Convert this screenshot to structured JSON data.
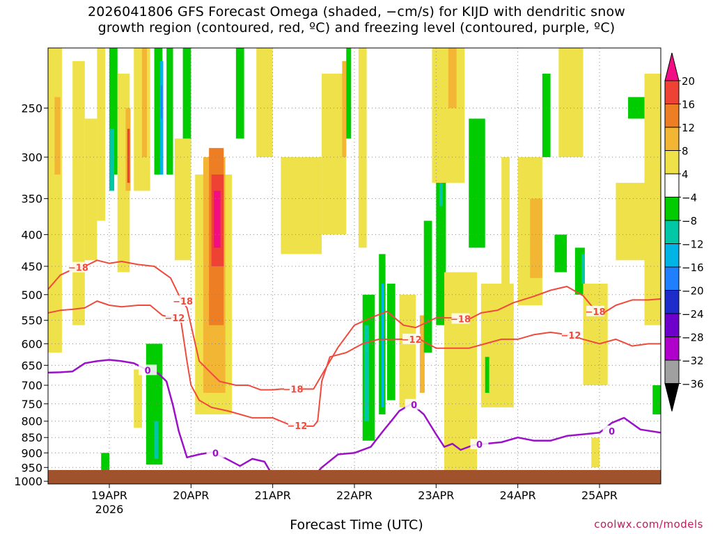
{
  "title": {
    "line1": "2026041806 GFS Forecast Omega (shaded, −cm/s) for KIJD with dendritic snow",
    "line2": "growth region (contoured, red, ºC) and freezing level (contoured, purple, ºC)"
  },
  "credit": "coolwx.com/models",
  "chart_data": {
    "type": "heatmap",
    "title": "2026041806 GFS Forecast Omega (shaded, −cm/s) for KIJD with dendritic snow growth region (contoured, red, ºC) and freezing level (contoured, purple, ºC)",
    "xlabel": "Forecast Time (UTC)",
    "ylabel": "",
    "x_ticks": [
      {
        "label": "19APR",
        "sublabel": "2026",
        "day": 1.0
      },
      {
        "label": "20APR",
        "day": 2.0
      },
      {
        "label": "21APR",
        "day": 3.0
      },
      {
        "label": "22APR",
        "day": 4.0
      },
      {
        "label": "23APR",
        "day": 5.0
      },
      {
        "label": "24APR",
        "day": 6.0
      },
      {
        "label": "25APR",
        "day": 7.0
      }
    ],
    "xlim_days": [
      0.25,
      7.75
    ],
    "y_ticks": [
      "250",
      "300",
      "350",
      "400",
      "450",
      "500",
      "550",
      "600",
      "650",
      "700",
      "750",
      "800",
      "850",
      "900",
      "950",
      "1000"
    ],
    "ylim_hpa": [
      200,
      1010
    ],
    "colorbar": {
      "labels": [
        "20",
        "16",
        "12",
        "8",
        "4",
        "−4",
        "−8",
        "−12",
        "−16",
        "−20",
        "−24",
        "−28",
        "−32",
        "−36"
      ],
      "colors": [
        "#f20d84",
        "#ee4235",
        "#ee7e24",
        "#f3b534",
        "#efe14a",
        "#ffffff",
        "#00cc00",
        "#00c8a6",
        "#00b4e6",
        "#1e80ff",
        "#1e2ccc",
        "#6e00cc",
        "#b000cc",
        "#a0a0a0",
        "#000000"
      ]
    },
    "omega_cells": [
      {
        "x0": 0.25,
        "x1": 0.42,
        "p0": 200,
        "p1": 620,
        "level": 1
      },
      {
        "x0": 0.33,
        "x1": 0.4,
        "p0": 240,
        "p1": 320,
        "level": 2
      },
      {
        "x0": 0.55,
        "x1": 0.7,
        "p0": 210,
        "p1": 560,
        "level": 1
      },
      {
        "x0": 0.7,
        "x1": 0.85,
        "p0": 260,
        "p1": 440,
        "level": 1
      },
      {
        "x0": 0.85,
        "x1": 0.95,
        "p0": 200,
        "p1": 380,
        "level": 1
      },
      {
        "x0": 1.0,
        "x1": 1.1,
        "p0": 200,
        "p1": 320,
        "level": -1
      },
      {
        "x0": 1.0,
        "x1": 1.06,
        "p0": 270,
        "p1": 340,
        "level": -2
      },
      {
        "x0": 1.1,
        "x1": 1.25,
        "p0": 220,
        "p1": 460,
        "level": 1
      },
      {
        "x0": 1.2,
        "x1": 1.26,
        "p0": 250,
        "p1": 340,
        "level": 2
      },
      {
        "x0": 1.22,
        "x1": 1.25,
        "p0": 270,
        "p1": 330,
        "level": 4
      },
      {
        "x0": 1.3,
        "x1": 1.5,
        "p0": 200,
        "p1": 340,
        "level": 1
      },
      {
        "x0": 1.4,
        "x1": 1.46,
        "p0": 200,
        "p1": 300,
        "level": 2
      },
      {
        "x0": 1.55,
        "x1": 1.65,
        "p0": 200,
        "p1": 320,
        "level": -1
      },
      {
        "x0": 1.62,
        "x1": 1.66,
        "p0": 210,
        "p1": 320,
        "level": -3
      },
      {
        "x0": 1.63,
        "x1": 1.65,
        "p0": 230,
        "p1": 260,
        "level": -4
      },
      {
        "x0": 1.7,
        "x1": 1.78,
        "p0": 200,
        "p1": 320,
        "level": -1
      },
      {
        "x0": 1.9,
        "x1": 2.0,
        "p0": 200,
        "p1": 300,
        "level": -1
      },
      {
        "x0": 1.8,
        "x1": 2.0,
        "p0": 280,
        "p1": 440,
        "level": 1
      },
      {
        "x0": 2.05,
        "x1": 2.5,
        "p0": 320,
        "p1": 780,
        "level": 1
      },
      {
        "x0": 2.15,
        "x1": 2.42,
        "p0": 300,
        "p1": 720,
        "level": 2
      },
      {
        "x0": 2.22,
        "x1": 2.4,
        "p0": 290,
        "p1": 560,
        "level": 3
      },
      {
        "x0": 2.25,
        "x1": 2.4,
        "p0": 320,
        "p1": 450,
        "level": 4
      },
      {
        "x0": 2.28,
        "x1": 2.36,
        "p0": 340,
        "p1": 420,
        "level": 5
      },
      {
        "x0": 2.55,
        "x1": 2.65,
        "p0": 200,
        "p1": 280,
        "level": -1
      },
      {
        "x0": 2.8,
        "x1": 3.0,
        "p0": 200,
        "p1": 300,
        "level": 1
      },
      {
        "x0": 3.1,
        "x1": 3.6,
        "p0": 300,
        "p1": 430,
        "level": 1
      },
      {
        "x0": 3.6,
        "x1": 3.9,
        "p0": 220,
        "p1": 400,
        "level": 1
      },
      {
        "x0": 3.85,
        "x1": 3.9,
        "p0": 210,
        "p1": 300,
        "level": 2
      },
      {
        "x0": 3.9,
        "x1": 3.96,
        "p0": 200,
        "p1": 280,
        "level": -1
      },
      {
        "x0": 4.05,
        "x1": 4.15,
        "p0": 200,
        "p1": 420,
        "level": 1
      },
      {
        "x0": 4.1,
        "x1": 4.25,
        "p0": 500,
        "p1": 860,
        "level": -1
      },
      {
        "x0": 4.12,
        "x1": 4.18,
        "p0": 560,
        "p1": 800,
        "level": -2
      },
      {
        "x0": 4.3,
        "x1": 4.38,
        "p0": 430,
        "p1": 780,
        "level": -1
      },
      {
        "x0": 4.33,
        "x1": 4.36,
        "p0": 480,
        "p1": 760,
        "level": -3
      },
      {
        "x0": 4.4,
        "x1": 4.5,
        "p0": 480,
        "p1": 740,
        "level": -1
      },
      {
        "x0": 4.55,
        "x1": 4.75,
        "p0": 500,
        "p1": 760,
        "level": 1
      },
      {
        "x0": 4.8,
        "x1": 4.86,
        "p0": 540,
        "p1": 720,
        "level": 2
      },
      {
        "x0": 4.85,
        "x1": 4.95,
        "p0": 380,
        "p1": 620,
        "level": -1
      },
      {
        "x0": 5.0,
        "x1": 5.12,
        "p0": 260,
        "p1": 560,
        "level": -1
      },
      {
        "x0": 5.04,
        "x1": 5.08,
        "p0": 280,
        "p1": 360,
        "level": -2
      },
      {
        "x0": 4.95,
        "x1": 5.35,
        "p0": 200,
        "p1": 330,
        "level": 1
      },
      {
        "x0": 5.15,
        "x1": 5.25,
        "p0": 200,
        "p1": 250,
        "level": 2
      },
      {
        "x0": 5.4,
        "x1": 5.6,
        "p0": 260,
        "p1": 420,
        "level": -1
      },
      {
        "x0": 5.1,
        "x1": 5.5,
        "p0": 460,
        "p1": 960,
        "level": 1
      },
      {
        "x0": 5.55,
        "x1": 5.95,
        "p0": 480,
        "p1": 760,
        "level": 1
      },
      {
        "x0": 5.6,
        "x1": 5.65,
        "p0": 630,
        "p1": 720,
        "level": -1
      },
      {
        "x0": 5.8,
        "x1": 5.9,
        "p0": 300,
        "p1": 520,
        "level": 1
      },
      {
        "x0": 6.0,
        "x1": 6.3,
        "p0": 300,
        "p1": 520,
        "level": 1
      },
      {
        "x0": 6.15,
        "x1": 6.3,
        "p0": 350,
        "p1": 470,
        "level": 2
      },
      {
        "x0": 6.3,
        "x1": 6.4,
        "p0": 220,
        "p1": 300,
        "level": -1
      },
      {
        "x0": 6.5,
        "x1": 6.8,
        "p0": 200,
        "p1": 300,
        "level": 1
      },
      {
        "x0": 6.45,
        "x1": 6.6,
        "p0": 400,
        "p1": 460,
        "level": -1
      },
      {
        "x0": 6.7,
        "x1": 6.82,
        "p0": 420,
        "p1": 500,
        "level": -1
      },
      {
        "x0": 6.78,
        "x1": 6.82,
        "p0": 430,
        "p1": 480,
        "level": -2
      },
      {
        "x0": 6.8,
        "x1": 7.1,
        "p0": 480,
        "p1": 700,
        "level": 1
      },
      {
        "x0": 7.2,
        "x1": 7.6,
        "p0": 330,
        "p1": 440,
        "level": 1
      },
      {
        "x0": 7.55,
        "x1": 7.75,
        "p0": 220,
        "p1": 560,
        "level": 1
      },
      {
        "x0": 7.35,
        "x1": 7.55,
        "p0": 240,
        "p1": 260,
        "level": -1
      },
      {
        "x0": 7.65,
        "x1": 7.75,
        "p0": 700,
        "p1": 780,
        "level": -1
      },
      {
        "x0": 0.9,
        "x1": 1.0,
        "p0": 900,
        "p1": 960,
        "level": -1
      },
      {
        "x0": 1.45,
        "x1": 1.65,
        "p0": 600,
        "p1": 940,
        "level": -1
      },
      {
        "x0": 1.55,
        "x1": 1.6,
        "p0": 800,
        "p1": 920,
        "level": -2
      },
      {
        "x0": 1.3,
        "x1": 1.4,
        "p0": 660,
        "p1": 820,
        "level": 1
      },
      {
        "x0": 6.9,
        "x1": 7.0,
        "p0": 850,
        "p1": 950,
        "level": 1
      }
    ],
    "dgz_contours": [
      {
        "label": "−18",
        "points": [
          [
            0.25,
            490
          ],
          [
            0.4,
            465
          ],
          [
            0.55,
            455
          ],
          [
            0.7,
            450
          ],
          [
            0.85,
            440
          ],
          [
            1.0,
            445
          ],
          [
            1.15,
            442
          ],
          [
            1.35,
            447
          ],
          [
            1.55,
            450
          ],
          [
            1.75,
            470
          ],
          [
            1.88,
            510
          ],
          [
            1.95,
            525
          ],
          [
            2.0,
            560
          ],
          [
            2.1,
            640
          ],
          [
            2.25,
            670
          ],
          [
            2.35,
            690
          ],
          [
            2.55,
            700
          ],
          [
            2.7,
            700
          ],
          [
            2.85,
            712
          ],
          [
            3.0,
            712
          ],
          [
            3.1,
            710
          ],
          [
            3.3,
            710
          ],
          [
            3.5,
            710
          ],
          [
            3.8,
            608
          ],
          [
            4.0,
            560
          ],
          [
            4.2,
            545
          ],
          [
            4.4,
            532
          ],
          [
            4.6,
            560
          ],
          [
            4.75,
            565
          ],
          [
            5.0,
            545
          ],
          [
            5.2,
            545
          ],
          [
            5.4,
            548
          ],
          [
            5.55,
            535
          ],
          [
            5.75,
            530
          ],
          [
            5.95,
            515
          ],
          [
            6.2,
            503
          ],
          [
            6.4,
            492
          ],
          [
            6.6,
            485
          ],
          [
            6.8,
            502
          ],
          [
            7.0,
            540
          ],
          [
            7.2,
            520
          ],
          [
            7.4,
            510
          ],
          [
            7.6,
            510
          ],
          [
            7.75,
            508
          ]
        ]
      },
      {
        "label": "−12",
        "points": [
          [
            0.25,
            535
          ],
          [
            0.4,
            530
          ],
          [
            0.55,
            528
          ],
          [
            0.7,
            525
          ],
          [
            0.85,
            512
          ],
          [
            1.0,
            520
          ],
          [
            1.15,
            523
          ],
          [
            1.35,
            520
          ],
          [
            1.5,
            520
          ],
          [
            1.65,
            540
          ],
          [
            1.8,
            545
          ],
          [
            1.88,
            555
          ],
          [
            1.95,
            640
          ],
          [
            2.0,
            700
          ],
          [
            2.1,
            740
          ],
          [
            2.25,
            760
          ],
          [
            2.45,
            770
          ],
          [
            2.6,
            780
          ],
          [
            2.75,
            790
          ],
          [
            3.0,
            790
          ],
          [
            3.2,
            810
          ],
          [
            3.38,
            815
          ],
          [
            3.5,
            815
          ],
          [
            3.55,
            800
          ],
          [
            3.6,
            690
          ],
          [
            3.7,
            630
          ],
          [
            3.9,
            620
          ],
          [
            4.1,
            600
          ],
          [
            4.3,
            590
          ],
          [
            4.5,
            590
          ],
          [
            4.8,
            590
          ],
          [
            5.0,
            610
          ],
          [
            5.2,
            610
          ],
          [
            5.4,
            610
          ],
          [
            5.6,
            600
          ],
          [
            5.8,
            590
          ],
          [
            6.0,
            590
          ],
          [
            6.2,
            580
          ],
          [
            6.4,
            575
          ],
          [
            6.6,
            580
          ],
          [
            6.8,
            590
          ],
          [
            7.0,
            600
          ],
          [
            7.2,
            590
          ],
          [
            7.4,
            605
          ],
          [
            7.6,
            600
          ],
          [
            7.75,
            600
          ]
        ]
      }
    ],
    "freezing_contour": {
      "label": "0",
      "segments": [
        [
          [
            0.25,
            668
          ],
          [
            0.4,
            667
          ],
          [
            0.55,
            665
          ],
          [
            0.7,
            645
          ],
          [
            0.85,
            640
          ],
          [
            1.0,
            637
          ],
          [
            1.15,
            640
          ],
          [
            1.3,
            645
          ],
          [
            1.45,
            660
          ],
          [
            1.6,
            670
          ],
          [
            1.7,
            690
          ],
          [
            1.78,
            755
          ],
          [
            1.85,
            830
          ],
          [
            1.95,
            915
          ],
          [
            2.1,
            905
          ],
          [
            2.25,
            898
          ],
          [
            2.4,
            915
          ],
          [
            2.6,
            945
          ],
          [
            2.75,
            920
          ],
          [
            2.9,
            930
          ],
          [
            3.0,
            980
          ],
          [
            3.1,
            1000
          ]
        ],
        [
          [
            3.45,
            1000
          ],
          [
            3.6,
            950
          ],
          [
            3.8,
            905
          ],
          [
            4.0,
            900
          ],
          [
            4.2,
            880
          ],
          [
            4.35,
            830
          ],
          [
            4.45,
            800
          ],
          [
            4.55,
            770
          ],
          [
            4.7,
            750
          ],
          [
            4.85,
            780
          ],
          [
            5.0,
            840
          ],
          [
            5.1,
            880
          ],
          [
            5.2,
            870
          ],
          [
            5.3,
            890
          ],
          [
            5.45,
            875
          ],
          [
            5.6,
            870
          ],
          [
            5.8,
            865
          ],
          [
            6.0,
            850
          ],
          [
            6.2,
            860
          ],
          [
            6.4,
            860
          ],
          [
            6.6,
            845
          ],
          [
            6.8,
            840
          ],
          [
            7.0,
            835
          ],
          [
            7.15,
            805
          ],
          [
            7.3,
            790
          ],
          [
            7.5,
            825
          ],
          [
            7.75,
            835
          ]
        ]
      ]
    }
  }
}
